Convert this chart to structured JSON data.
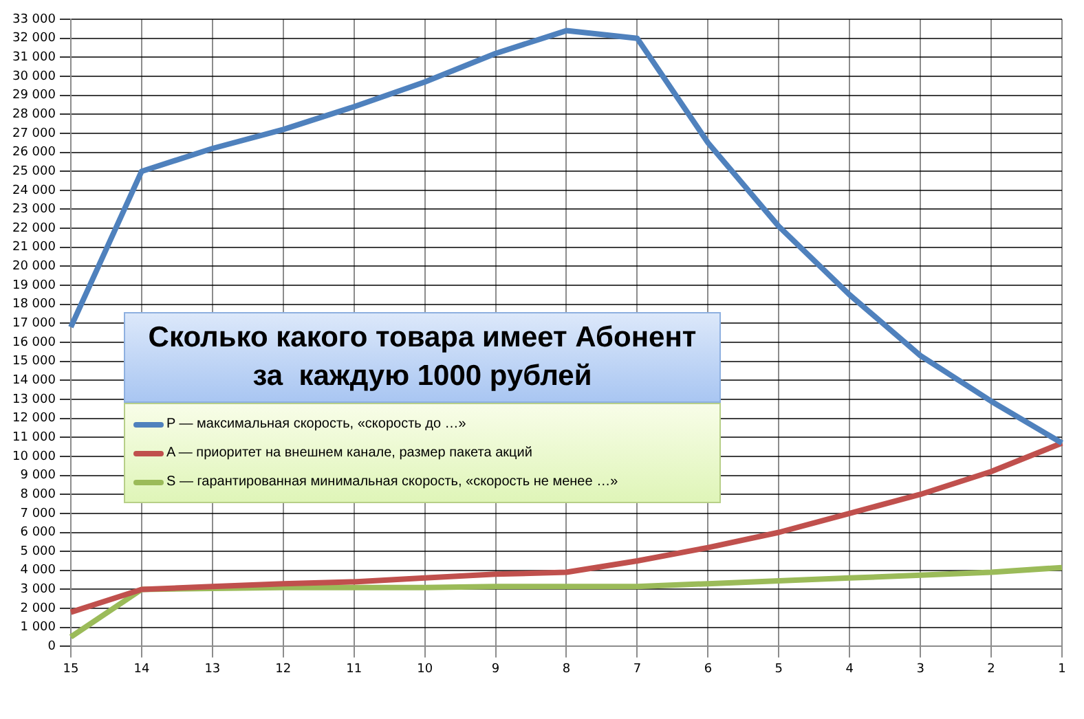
{
  "chart_data": {
    "type": "line",
    "title": "Сколько какого товара имеет Абонент за  каждую 1000 рублей",
    "categories": [
      "15",
      "14",
      "13",
      "12",
      "11",
      "10",
      "9",
      "8",
      "7",
      "6",
      "5",
      "4",
      "3",
      "2",
      "1"
    ],
    "series": [
      {
        "name": "P — максимальная скорость, «скорость до …»",
        "color": "#4f81bd",
        "values": [
          16800,
          25000,
          26200,
          27200,
          28400,
          29700,
          31200,
          32400,
          32000,
          26500,
          22100,
          18500,
          15300,
          12900,
          10700
        ]
      },
      {
        "name": "A — приоритет на внешнем канале, размер пакета акций",
        "color": "#c0504d",
        "values": [
          1800,
          3000,
          3150,
          3300,
          3400,
          3600,
          3800,
          3900,
          4500,
          5200,
          6000,
          7000,
          8000,
          9200,
          10700
        ]
      },
      {
        "name": "S — гарантированная минимальная скорость, «скорость не менее …»",
        "color": "#9bbb59",
        "values": [
          500,
          3000,
          3050,
          3100,
          3100,
          3100,
          3150,
          3150,
          3150,
          3300,
          3450,
          3600,
          3750,
          3900,
          4150
        ]
      }
    ],
    "ylim": [
      0,
      33000
    ],
    "yticks": [
      0,
      1000,
      2000,
      3000,
      4000,
      5000,
      6000,
      7000,
      8000,
      9000,
      10000,
      11000,
      12000,
      13000,
      14000,
      15000,
      16000,
      17000,
      18000,
      19000,
      20000,
      21000,
      22000,
      23000,
      24000,
      25000,
      26000,
      27000,
      28000,
      29000,
      30000,
      31000,
      32000,
      33000
    ],
    "grid": true,
    "legend": "left",
    "marker": "none",
    "line_style": "solid"
  }
}
